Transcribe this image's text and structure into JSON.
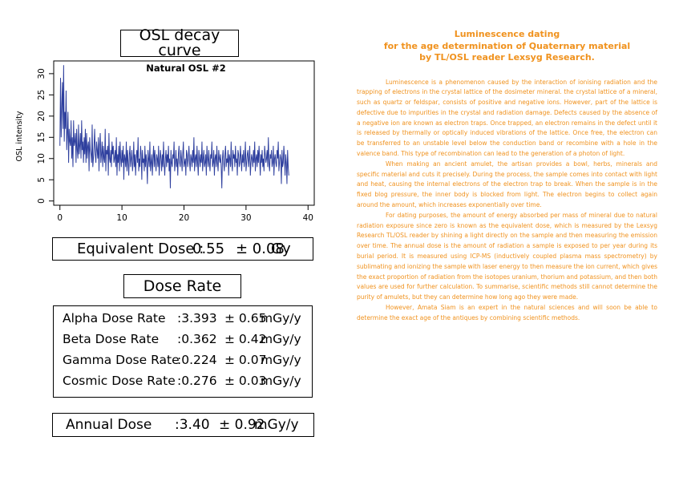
{
  "left_panel": {
    "chart_title_box": "OSL decay curve",
    "equivalent_dose": {
      "label": "Equivalent Dose :",
      "value": "0.55",
      "error": "± 0.08",
      "unit": "Gy"
    },
    "dose_rate_title": "Dose Rate",
    "dose_rates": [
      {
        "label": "Alpha Dose Rate",
        "value": ":3.393",
        "error": "± 0.65",
        "unit": "mGy/y"
      },
      {
        "label": "Beta Dose Rate",
        "value": ":0.362",
        "error": "± 0.42",
        "unit": "mGy/y"
      },
      {
        "label": "Gamma Dose Rate",
        "value": ":0.224",
        "error": "± 0.07",
        "unit": "mGy/y"
      },
      {
        "label": "Cosmic Dose Rate",
        "value": ":0.276",
        "error": "± 0.03",
        "unit": "mGy/y"
      }
    ],
    "annual_dose": {
      "label": "Annual Dose",
      "value": ":3.40",
      "error": "± 0.92",
      "unit": "mGy/y"
    }
  },
  "chart_data": {
    "type": "line",
    "title": "Natural OSL #2",
    "xlabel": "",
    "ylabel": "OSL intensity",
    "xlim": [
      -1,
      41
    ],
    "ylim": [
      -1,
      33
    ],
    "x_ticks": [
      0,
      10,
      20,
      30,
      40
    ],
    "y_ticks": [
      0,
      5,
      10,
      15,
      20,
      25,
      30
    ],
    "grid": false,
    "line_color": "#2e3f9e",
    "series": [
      {
        "x_start": 0,
        "x_step": 0.1,
        "values": [
          13,
          29,
          15,
          22,
          28,
          17,
          32,
          14,
          21,
          17,
          26,
          12,
          16,
          21,
          9,
          17,
          14,
          13,
          19,
          10,
          15,
          8,
          19,
          13,
          14,
          16,
          9,
          17,
          12,
          10,
          18,
          11,
          13,
          16,
          10,
          19,
          12,
          14,
          9,
          15,
          11,
          17,
          9,
          16,
          10,
          13,
          14,
          7,
          15,
          12,
          11,
          9,
          18,
          8,
          10,
          13,
          17,
          11,
          9,
          14,
          12,
          10,
          15,
          7,
          13,
          16,
          9,
          11,
          14,
          8,
          13,
          10,
          9,
          17,
          7,
          12,
          11,
          13,
          6,
          16,
          10,
          9,
          12,
          8,
          14,
          11,
          13,
          9,
          10,
          12,
          8,
          15,
          6,
          11,
          9,
          13,
          7,
          14,
          10,
          8,
          12,
          9,
          13,
          5,
          11,
          10,
          8,
          14,
          7,
          12,
          9,
          6,
          11,
          13,
          8,
          10,
          12,
          7,
          9,
          14,
          8,
          11,
          6,
          10,
          12,
          9,
          15,
          7,
          10,
          8,
          13,
          11,
          5,
          12,
          9,
          10,
          7,
          13,
          8,
          11,
          9,
          4,
          12,
          10,
          8,
          14,
          7,
          9,
          11,
          6,
          10,
          13,
          8,
          12,
          9,
          7,
          11,
          10,
          8,
          13,
          6,
          9,
          12,
          10,
          7,
          11,
          8,
          14,
          9,
          6,
          10,
          12,
          8,
          11,
          9,
          13,
          7,
          10,
          3,
          12,
          9,
          8,
          11,
          10,
          14,
          7,
          9,
          12,
          8,
          10,
          6,
          11,
          13,
          9,
          8,
          12,
          10,
          7,
          11,
          14,
          8,
          9,
          10,
          6,
          12,
          11,
          8,
          10,
          13,
          9,
          7,
          11,
          10,
          8,
          12,
          9,
          15,
          7,
          10,
          11,
          8,
          13,
          9,
          6,
          12,
          10,
          8,
          11,
          9,
          14,
          7,
          10,
          12,
          8,
          9,
          11,
          6,
          13,
          10,
          8,
          12,
          9,
          7,
          11,
          10,
          14,
          8,
          9,
          12,
          6,
          10,
          11,
          8,
          13,
          9,
          7,
          12,
          10,
          9,
          11,
          8,
          3,
          10,
          12,
          9,
          7,
          11,
          13,
          8,
          10,
          9,
          12,
          6,
          11,
          10,
          8,
          14,
          9,
          7,
          12,
          10,
          11,
          8,
          13,
          9,
          10,
          6,
          12,
          11,
          8,
          9,
          13,
          10,
          7,
          11,
          9,
          12,
          8,
          10,
          14,
          7,
          9,
          11,
          12,
          8,
          10,
          13,
          6,
          9,
          11,
          10,
          8,
          12,
          9,
          14,
          7,
          10,
          11,
          8,
          12,
          9,
          13,
          10,
          6,
          11,
          9,
          12,
          8,
          10,
          7,
          13,
          11,
          9,
          10,
          12,
          8,
          15,
          9,
          7,
          11,
          10,
          12,
          8,
          9,
          13,
          6,
          10,
          11,
          9,
          8,
          12,
          10,
          14,
          7,
          9,
          11,
          10,
          4,
          12,
          8,
          9,
          13,
          10,
          6,
          11,
          9,
          4,
          12,
          8,
          6
        ]
      }
    ]
  },
  "article": {
    "heading_lines": [
      "Luminescence dating",
      "for the age determination of Quaternary material",
      "by TL/OSL reader Lexsyg Research."
    ],
    "paragraphs": [
      "Luminescence is a phenomenon caused by the interaction of ionising radiation and the trapping of electrons in the crystal lattice of the dosimeter mineral. the crystal lattice of a mineral, such as quartz or feldspar, consists of positive and negative ions. However, part of the lattice is defective due to impurities in the crystal and radiation damage. Defects caused by the absence of a negative ion are known as electron traps. Once trapped, an electron remains in the defect until it is released by thermally or optically induced vibrations of the lattice. Once free, the electron can be transferred to an unstable level below the conduction band or recombine with a hole in the valence band. This type of recombination can lead to the generation of a photon of light.",
      "When making an ancient amulet, the artisan provides a bowl, herbs, minerals and specific material and cuts it precisely. During the process, the sample comes into contact with light and heat, causing the internal electrons of the electron trap to break. When the sample is in the fixed blog pressure, the inner body is blocked from light. The electron begins to collect again around the amount, which increases exponentially over time.",
      "For dating purposes, the amount of energy absorbed per mass of mineral due to natural radiation exposure since zero is known as the equivalent dose, which is measured by the Lexsyg Research TL/OSL reader by shining a light directly on the sample and then measuring the emission over time. The annual dose is the amount of radiation a sample is exposed to per year during its burial period. It is measured using ICP-MS (inductively coupled plasma mass spectrometry) by sublimating and ionizing the sample with laser energy to then measure the ion current, which gives the exact proportion of radiation from the isotopes uranium, thorium and potassium, and then both values are used for further calculation. To summarise, scientific methods still cannot determine the purity of amulets, but they can determine how long ago they were made.",
      "However, Amata Siam is an expert in the natural sciences and will soon be able to determine the exact age of the antiques by combining scientific methods."
    ]
  }
}
